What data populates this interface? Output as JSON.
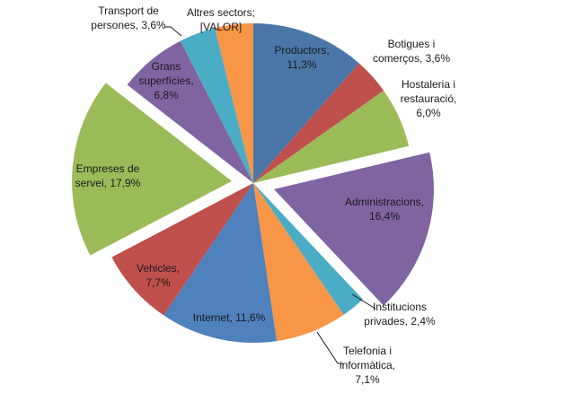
{
  "chart_data": {
    "type": "pie",
    "title": "",
    "slices": [
      {
        "label_lines": [
          "Productors,",
          "11,3%"
        ],
        "category": "Productors",
        "value": 11.3,
        "color": "#4a77a8",
        "exploded": false
      },
      {
        "label_lines": [
          "Botigues i",
          "comerços, 3,6%"
        ],
        "category": "Botigues i comerços",
        "value": 3.6,
        "color": "#c0504d",
        "exploded": false
      },
      {
        "label_lines": [
          "Hostaleria i",
          "restauració,",
          "6,0%"
        ],
        "category": "Hostaleria i restauració",
        "value": 6.0,
        "color": "#9bbb59",
        "exploded": false
      },
      {
        "label_lines": [
          "Administracions,",
          "16,4%"
        ],
        "category": "Administracions",
        "value": 16.4,
        "color": "#8064a2",
        "exploded": true
      },
      {
        "label_lines": [
          "Institucions",
          "privades, 2,4%"
        ],
        "category": "Institucions privades",
        "value": 2.4,
        "color": "#4bacc6",
        "exploded": false
      },
      {
        "label_lines": [
          "Telefonia i",
          "informàtica,",
          "7,1%"
        ],
        "category": "Telefonia i informàtica",
        "value": 7.1,
        "color": "#f79646",
        "exploded": false
      },
      {
        "label_lines": [
          "Internet, 11,6%"
        ],
        "category": "Internet",
        "value": 11.6,
        "color": "#4f81bd",
        "exploded": false
      },
      {
        "label_lines": [
          "Vehicles,",
          "7,7%"
        ],
        "category": "Vehicles",
        "value": 7.7,
        "color": "#c0504d",
        "exploded": false
      },
      {
        "label_lines": [
          "Empreses de",
          "servei, 17,9%"
        ],
        "category": "Empreses de servei",
        "value": 17.9,
        "color": "#9bbb59",
        "exploded": true
      },
      {
        "label_lines": [
          "Grans",
          "superfícies,",
          "6,8%"
        ],
        "category": "Grans superfícies",
        "value": 6.8,
        "color": "#8064a2",
        "exploded": false
      },
      {
        "label_lines": [
          "Transport de",
          "persones, 3,6%"
        ],
        "category": "Transport de persones",
        "value": 3.6,
        "color": "#4bacc6",
        "exploded": false
      },
      {
        "label_lines": [
          "Altres sectors;",
          "[VALOR]"
        ],
        "category": "Altres sectors",
        "value": 3.8,
        "color": "#f79646",
        "exploded": false
      }
    ]
  }
}
